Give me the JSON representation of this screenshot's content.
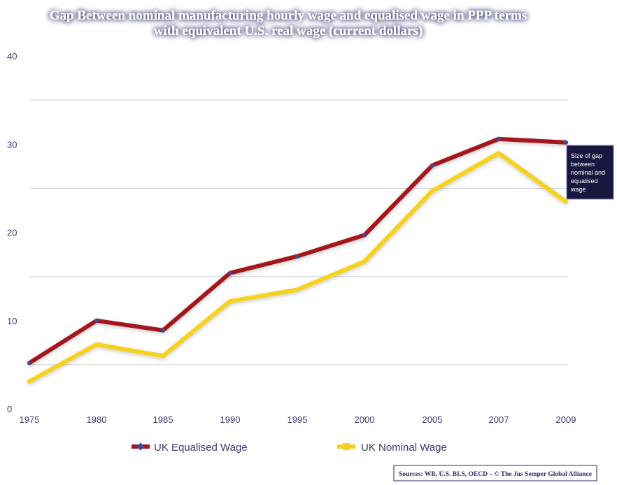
{
  "chart_data": {
    "type": "line",
    "title_lines": [
      "Gap Between nominal manufacturing hourly wage and equalised wage in PPP terms",
      "with equivalent U.S. real wage (current dollars)"
    ],
    "categories": [
      "1975",
      "1980",
      "1985",
      "1990",
      "1995",
      "2000",
      "2005",
      "2007",
      "2009"
    ],
    "y_ticks": [
      "0",
      "10",
      "20",
      "30",
      "40"
    ],
    "ylim": [
      0,
      40
    ],
    "grid": true,
    "legend_position": "bottom",
    "series": [
      {
        "name": "UK Equalised Wage",
        "color": "#a3161c",
        "marker_color": "#3c4a9c",
        "marker": "diamond",
        "values": [
          5.2,
          10.0,
          8.9,
          15.4,
          17.3,
          19.7,
          27.6,
          30.6,
          30.2
        ]
      },
      {
        "name": "UK Nominal Wage",
        "color": "#f6d21a",
        "marker_color": "#f6d21a",
        "marker": "square",
        "values": [
          3.1,
          7.3,
          6.0,
          12.2,
          13.5,
          16.7,
          24.7,
          29.0,
          23.5
        ]
      }
    ],
    "annotation": {
      "lines": [
        "Size of gap",
        "between",
        "nominal and",
        "equalised",
        "wage"
      ]
    },
    "source": "Sources: WB, U.S. BLS, OECD – © The Jus Semper Global Alliance"
  }
}
